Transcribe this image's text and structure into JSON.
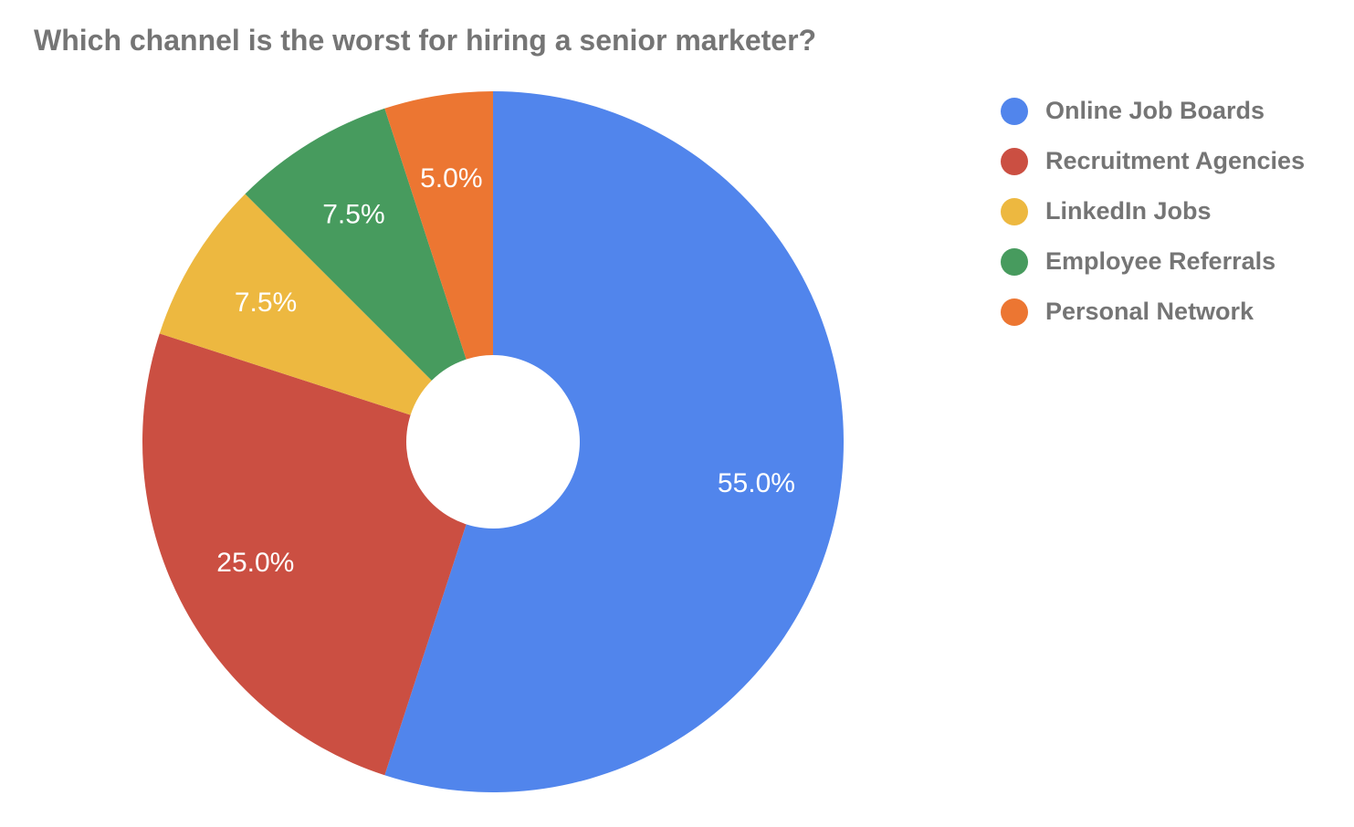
{
  "chart_data": {
    "type": "pie",
    "title": "Which channel is the worst for hiring a senior marketer?",
    "donut": true,
    "legend_position": "right",
    "categories": [
      "Online Job Boards",
      "Recruitment Agencies",
      "LinkedIn Jobs",
      "Employee Referrals",
      "Personal Network"
    ],
    "values": [
      55.0,
      25.0,
      7.5,
      7.5,
      5.0
    ],
    "value_labels": [
      "55.0%",
      "25.0%",
      "7.5%",
      "7.5%",
      "5.0%"
    ],
    "colors": [
      "#5185EC",
      "#CB4F42",
      "#EDB840",
      "#479B5E",
      "#EC7632"
    ]
  }
}
